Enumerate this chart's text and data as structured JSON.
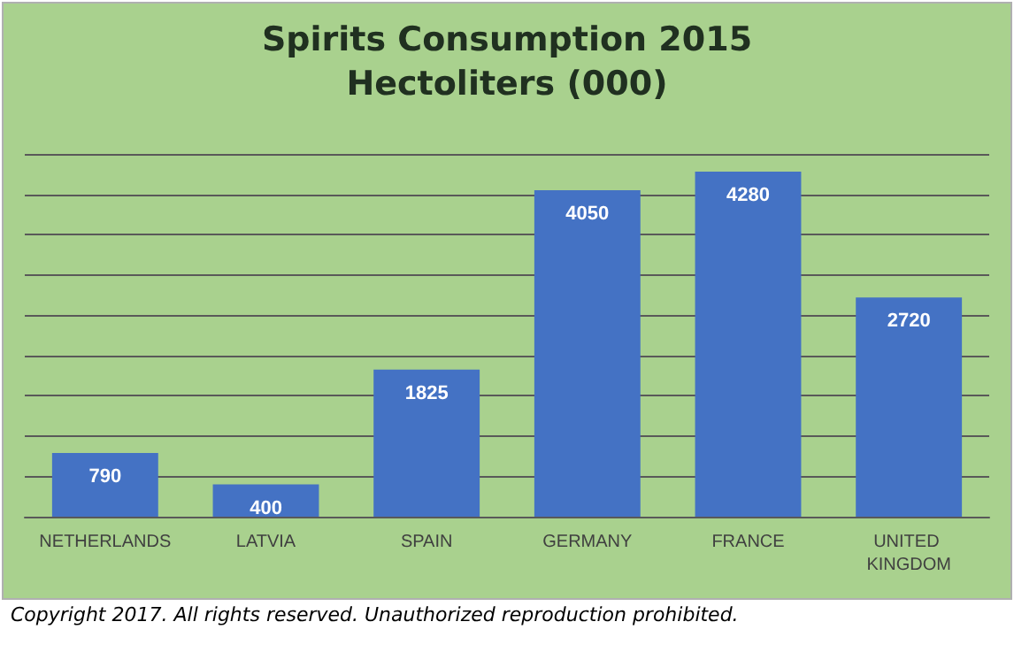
{
  "chart_data": {
    "type": "bar",
    "title": "Spirits Consumption 2015",
    "subtitle": "Hectoliters (000)",
    "categories": [
      "NETHERLANDS",
      "LATVIA",
      "SPAIN",
      "GERMANY",
      "FRANCE",
      "UNITED KINGDOM"
    ],
    "values": [
      790,
      400,
      1825,
      4050,
      4280,
      2720
    ],
    "color": "#4472c4",
    "data_labels": true,
    "ylim": [
      0,
      4500
    ],
    "yticks": [
      {
        "value": 0,
        "label": null
      },
      {
        "value": 500,
        "label": null
      },
      {
        "value": 1000,
        "label": null
      },
      {
        "value": 1500,
        "label": null
      },
      {
        "value": 2000,
        "label": null
      },
      {
        "value": 2500,
        "label": null
      },
      {
        "value": 3000,
        "label": null
      },
      {
        "value": 3500,
        "label": null
      },
      {
        "value": 4000,
        "label": null
      },
      {
        "value": 4500,
        "label": null
      }
    ],
    "tick_labels": "x",
    "grid": "y",
    "annotations": [
      "Copyright 2017.  All rights reserved. Unauthorized reproduction prohibited."
    ]
  }
}
